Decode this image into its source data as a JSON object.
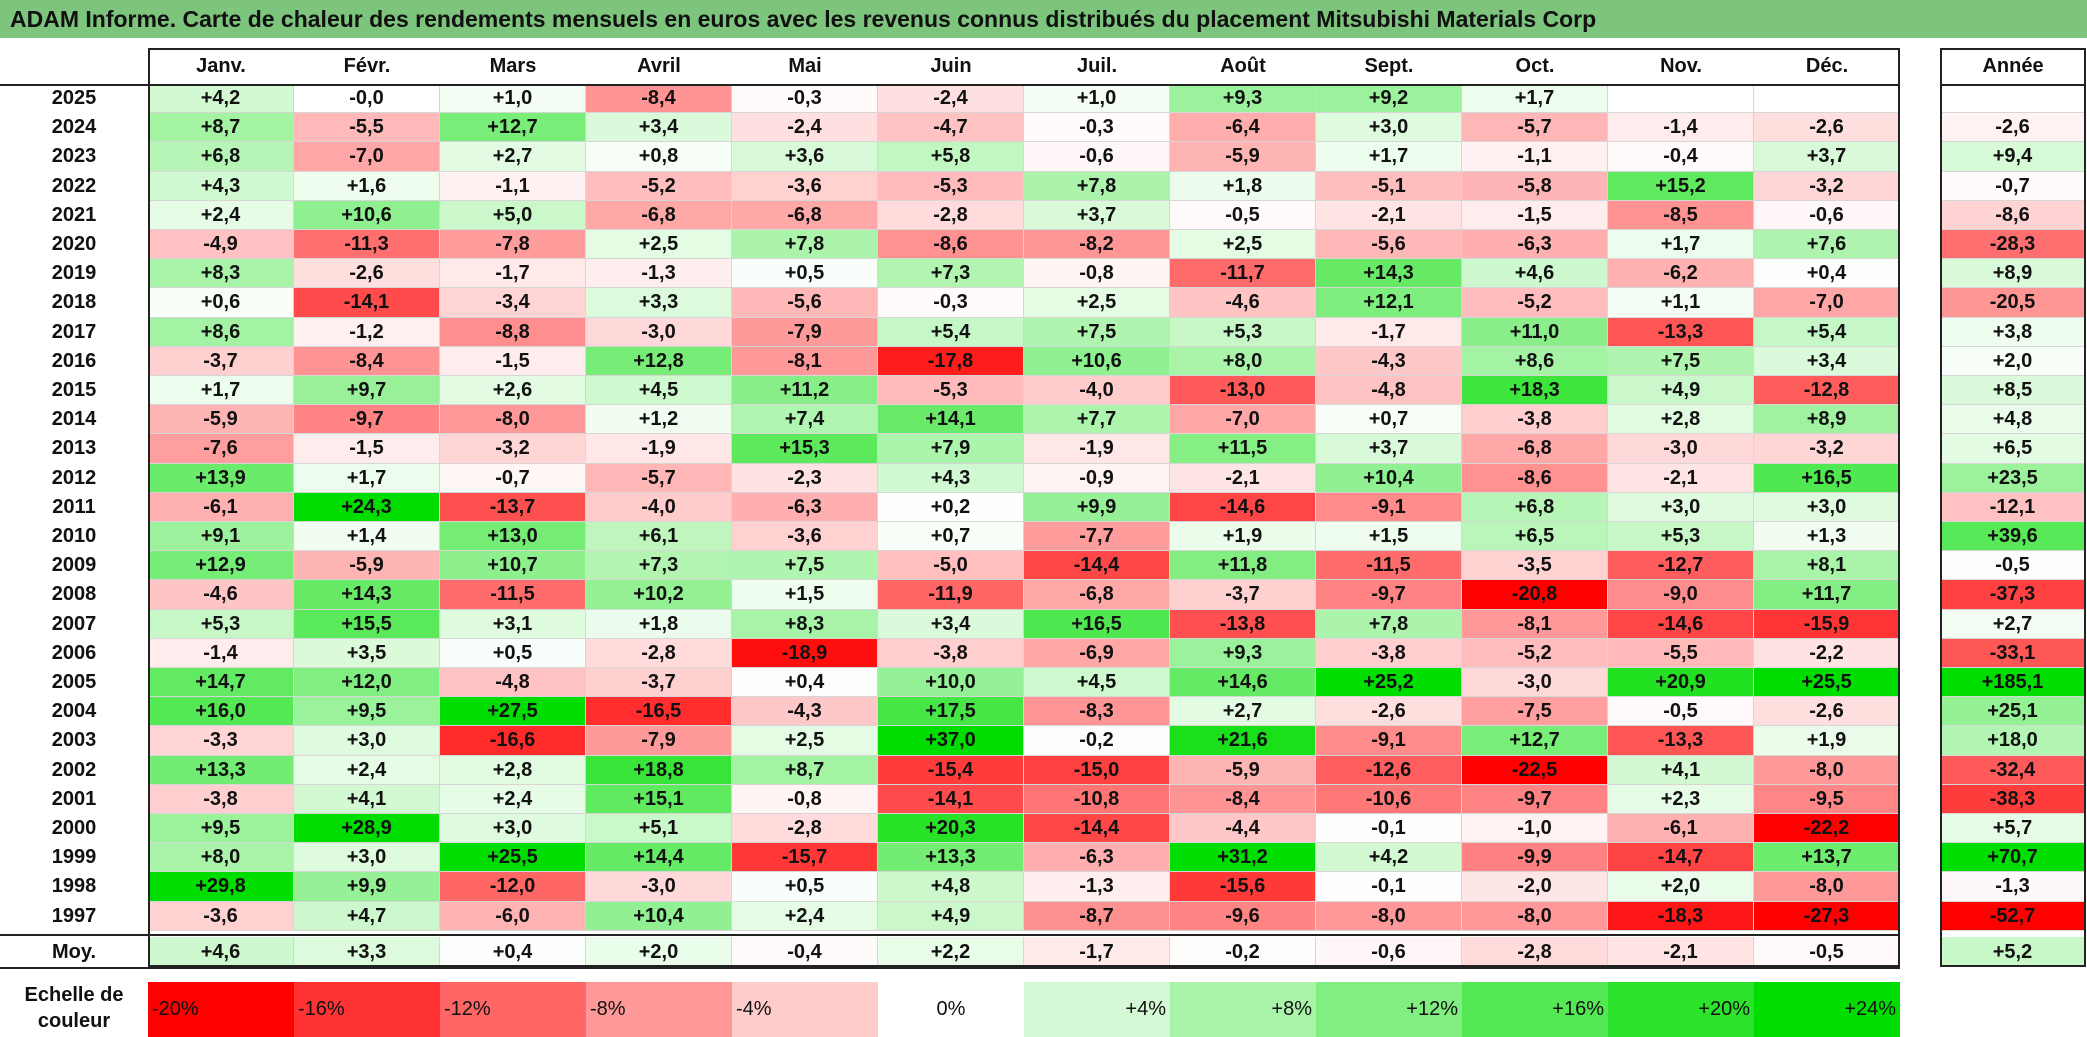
{
  "title": "ADAM Informe. Carte de chaleur des rendements mensuels en euros avec les revenus connus distribués du placement Mitsubishi Materials Corp",
  "chart_data": {
    "type": "heatmap",
    "months": [
      "Janv.",
      "Févr.",
      "Mars",
      "Avril",
      "Mai",
      "Juin",
      "Juil.",
      "Août",
      "Sept.",
      "Oct.",
      "Nov.",
      "Déc."
    ],
    "year_header": "Année",
    "rows": [
      {
        "year": "2025",
        "values": [
          "+4,2",
          "-0,0",
          "+1,0",
          "-8,4",
          "-0,3",
          "-2,4",
          "+1,0",
          "+9,3",
          "+9,2",
          "+1,7",
          "",
          ""
        ],
        "annual": ""
      },
      {
        "year": "2024",
        "values": [
          "+8,7",
          "-5,5",
          "+12,7",
          "+3,4",
          "-2,4",
          "-4,7",
          "-0,3",
          "-6,4",
          "+3,0",
          "-5,7",
          "-1,4",
          "-2,6"
        ],
        "annual": "-2,6"
      },
      {
        "year": "2023",
        "values": [
          "+6,8",
          "-7,0",
          "+2,7",
          "+0,8",
          "+3,6",
          "+5,8",
          "-0,6",
          "-5,9",
          "+1,7",
          "-1,1",
          "-0,4",
          "+3,7"
        ],
        "annual": "+9,4"
      },
      {
        "year": "2022",
        "values": [
          "+4,3",
          "+1,6",
          "-1,1",
          "-5,2",
          "-3,6",
          "-5,3",
          "+7,8",
          "+1,8",
          "-5,1",
          "-5,8",
          "+15,2",
          "-3,2"
        ],
        "annual": "-0,7"
      },
      {
        "year": "2021",
        "values": [
          "+2,4",
          "+10,6",
          "+5,0",
          "-6,8",
          "-6,8",
          "-2,8",
          "+3,7",
          "-0,5",
          "-2,1",
          "-1,5",
          "-8,5",
          "-0,6"
        ],
        "annual": "-8,6"
      },
      {
        "year": "2020",
        "values": [
          "-4,9",
          "-11,3",
          "-7,8",
          "+2,5",
          "+7,8",
          "-8,6",
          "-8,2",
          "+2,5",
          "-5,6",
          "-6,3",
          "+1,7",
          "+7,6"
        ],
        "annual": "-28,3"
      },
      {
        "year": "2019",
        "values": [
          "+8,3",
          "-2,6",
          "-1,7",
          "-1,3",
          "+0,5",
          "+7,3",
          "-0,8",
          "-11,7",
          "+14,3",
          "+4,6",
          "-6,2",
          "+0,4"
        ],
        "annual": "+8,9"
      },
      {
        "year": "2018",
        "values": [
          "+0,6",
          "-14,1",
          "-3,4",
          "+3,3",
          "-5,6",
          "-0,3",
          "+2,5",
          "-4,6",
          "+12,1",
          "-5,2",
          "+1,1",
          "-7,0"
        ],
        "annual": "-20,5"
      },
      {
        "year": "2017",
        "values": [
          "+8,6",
          "-1,2",
          "-8,8",
          "-3,0",
          "-7,9",
          "+5,4",
          "+7,5",
          "+5,3",
          "-1,7",
          "+11,0",
          "-13,3",
          "+5,4"
        ],
        "annual": "+3,8"
      },
      {
        "year": "2016",
        "values": [
          "-3,7",
          "-8,4",
          "-1,5",
          "+12,8",
          "-8,1",
          "-17,8",
          "+10,6",
          "+8,0",
          "-4,3",
          "+8,6",
          "+7,5",
          "+3,4"
        ],
        "annual": "+2,0"
      },
      {
        "year": "2015",
        "values": [
          "+1,7",
          "+9,7",
          "+2,6",
          "+4,5",
          "+11,2",
          "-5,3",
          "-4,0",
          "-13,0",
          "-4,8",
          "+18,3",
          "+4,9",
          "-12,8"
        ],
        "annual": "+8,5"
      },
      {
        "year": "2014",
        "values": [
          "-5,9",
          "-9,7",
          "-8,0",
          "+1,2",
          "+7,4",
          "+14,1",
          "+7,7",
          "-7,0",
          "+0,7",
          "-3,8",
          "+2,8",
          "+8,9"
        ],
        "annual": "+4,8"
      },
      {
        "year": "2013",
        "values": [
          "-7,6",
          "-1,5",
          "-3,2",
          "-1,9",
          "+15,3",
          "+7,9",
          "-1,9",
          "+11,5",
          "+3,7",
          "-6,8",
          "-3,0",
          "-3,2"
        ],
        "annual": "+6,5"
      },
      {
        "year": "2012",
        "values": [
          "+13,9",
          "+1,7",
          "-0,7",
          "-5,7",
          "-2,3",
          "+4,3",
          "-0,9",
          "-2,1",
          "+10,4",
          "-8,6",
          "-2,1",
          "+16,5"
        ],
        "annual": "+23,5"
      },
      {
        "year": "2011",
        "values": [
          "-6,1",
          "+24,3",
          "-13,7",
          "-4,0",
          "-6,3",
          "+0,2",
          "+9,9",
          "-14,6",
          "-9,1",
          "+6,8",
          "+3,0",
          "+3,0"
        ],
        "annual": "-12,1"
      },
      {
        "year": "2010",
        "values": [
          "+9,1",
          "+1,4",
          "+13,0",
          "+6,1",
          "-3,6",
          "+0,7",
          "-7,7",
          "+1,9",
          "+1,5",
          "+6,5",
          "+5,3",
          "+1,3"
        ],
        "annual": "+39,6"
      },
      {
        "year": "2009",
        "values": [
          "+12,9",
          "-5,9",
          "+10,7",
          "+7,3",
          "+7,5",
          "-5,0",
          "-14,4",
          "+11,8",
          "-11,5",
          "-3,5",
          "-12,7",
          "+8,1"
        ],
        "annual": "-0,5"
      },
      {
        "year": "2008",
        "values": [
          "-4,6",
          "+14,3",
          "-11,5",
          "+10,2",
          "+1,5",
          "-11,9",
          "-6,8",
          "-3,7",
          "-9,7",
          "-20,8",
          "-9,0",
          "+11,7"
        ],
        "annual": "-37,3"
      },
      {
        "year": "2007",
        "values": [
          "+5,3",
          "+15,5",
          "+3,1",
          "+1,8",
          "+8,3",
          "+3,4",
          "+16,5",
          "-13,8",
          "+7,8",
          "-8,1",
          "-14,6",
          "-15,9"
        ],
        "annual": "+2,7"
      },
      {
        "year": "2006",
        "values": [
          "-1,4",
          "+3,5",
          "+0,5",
          "-2,8",
          "-18,9",
          "-3,8",
          "-6,9",
          "+9,3",
          "-3,8",
          "-5,2",
          "-5,5",
          "-2,2"
        ],
        "annual": "-33,1"
      },
      {
        "year": "2005",
        "values": [
          "+14,7",
          "+12,0",
          "-4,8",
          "-3,7",
          "+0,4",
          "+10,0",
          "+4,5",
          "+14,6",
          "+25,2",
          "-3,0",
          "+20,9",
          "+25,5"
        ],
        "annual": "+185,1"
      },
      {
        "year": "2004",
        "values": [
          "+16,0",
          "+9,5",
          "+27,5",
          "-16,5",
          "-4,3",
          "+17,5",
          "-8,3",
          "+2,7",
          "-2,6",
          "-7,5",
          "-0,5",
          "-2,6"
        ],
        "annual": "+25,1"
      },
      {
        "year": "2003",
        "values": [
          "-3,3",
          "+3,0",
          "-16,6",
          "-7,9",
          "+2,5",
          "+37,0",
          "-0,2",
          "+21,6",
          "-9,1",
          "+12,7",
          "-13,3",
          "+1,9"
        ],
        "annual": "+18,0"
      },
      {
        "year": "2002",
        "values": [
          "+13,3",
          "+2,4",
          "+2,8",
          "+18,8",
          "+8,7",
          "-15,4",
          "-15,0",
          "-5,9",
          "-12,6",
          "-22,5",
          "+4,1",
          "-8,0"
        ],
        "annual": "-32,4"
      },
      {
        "year": "2001",
        "values": [
          "-3,8",
          "+4,1",
          "+2,4",
          "+15,1",
          "-0,8",
          "-14,1",
          "-10,8",
          "-8,4",
          "-10,6",
          "-9,7",
          "+2,3",
          "-9,5"
        ],
        "annual": "-38,3"
      },
      {
        "year": "2000",
        "values": [
          "+9,5",
          "+28,9",
          "+3,0",
          "+5,1",
          "-2,8",
          "+20,3",
          "-14,4",
          "-4,4",
          "-0,1",
          "-1,0",
          "-6,1",
          "-22,2"
        ],
        "annual": "+5,7"
      },
      {
        "year": "1999",
        "values": [
          "+8,0",
          "+3,0",
          "+25,5",
          "+14,4",
          "-15,7",
          "+13,3",
          "-6,3",
          "+31,2",
          "+4,2",
          "-9,9",
          "-14,7",
          "+13,7"
        ],
        "annual": "+70,7"
      },
      {
        "year": "1998",
        "values": [
          "+29,8",
          "+9,9",
          "-12,0",
          "-3,0",
          "+0,5",
          "+4,8",
          "-1,3",
          "-15,6",
          "-0,1",
          "-2,0",
          "+2,0",
          "-8,0"
        ],
        "annual": "-1,3"
      },
      {
        "year": "1997",
        "values": [
          "-3,6",
          "+4,7",
          "-6,0",
          "+10,4",
          "+2,4",
          "+4,9",
          "-8,7",
          "-9,6",
          "-8,0",
          "-8,0",
          "-18,3",
          "-27,3"
        ],
        "annual": "-52,7"
      }
    ],
    "average": {
      "label": "Moy.",
      "values": [
        "+4,6",
        "+3,3",
        "+0,4",
        "+2,0",
        "-0,4",
        "+2,2",
        "-1,7",
        "-0,2",
        "-0,6",
        "-2,8",
        "-2,1",
        "-0,5"
      ],
      "annual": "+5,2"
    },
    "scale": {
      "label_line1": "Echelle de",
      "label_line2": "couleur",
      "steps": [
        "-20%",
        "-16%",
        "-12%",
        "-8%",
        "-4%",
        "0%",
        "+4%",
        "+8%",
        "+12%",
        "+16%",
        "+20%",
        "+24%"
      ]
    },
    "colors": {
      "negative_max": "#ff0000",
      "neutral": "#ffffff",
      "positive_max": "#00dd00"
    }
  }
}
